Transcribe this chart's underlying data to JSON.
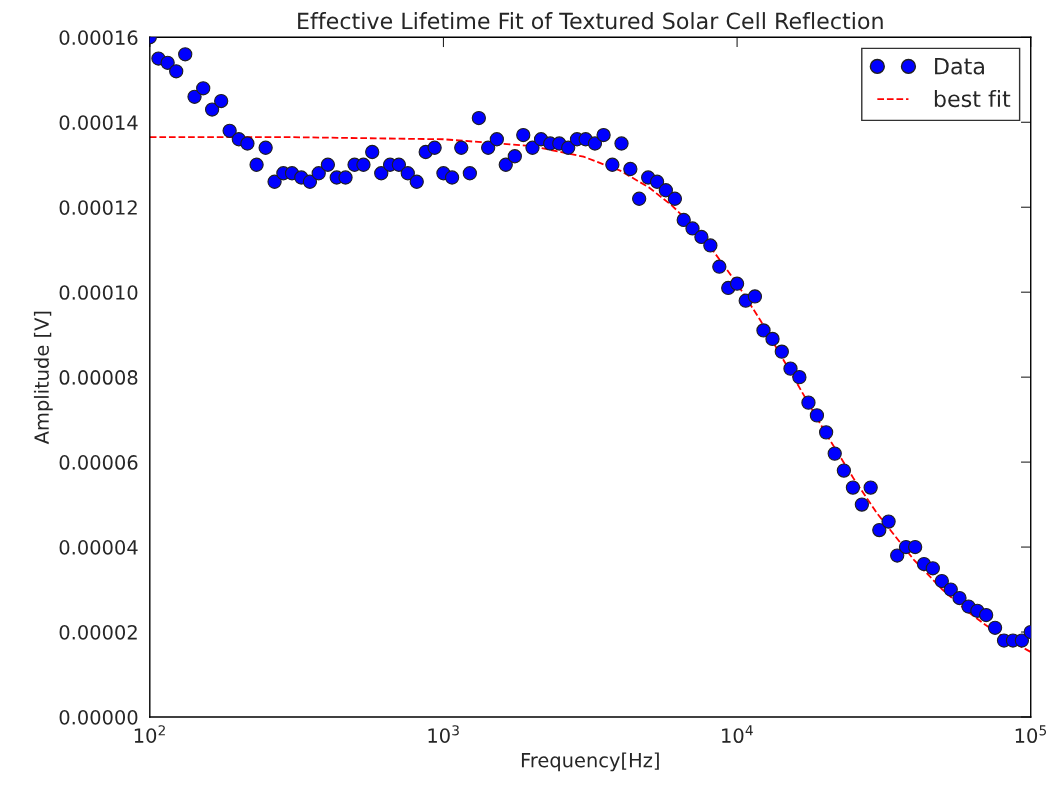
{
  "chart_data": {
    "type": "scatter",
    "title": "Effective Lifetime Fit of Textured Solar Cell Reflection",
    "xlabel": "Frequency[Hz]",
    "ylabel": "Amplitude [V]",
    "log": "x",
    "xlim": [
      100,
      100000
    ],
    "xticks": [
      {
        "value": 100,
        "label": "10$^{2}$"
      },
      {
        "value": 1000,
        "label": "10$^{3}$"
      },
      {
        "value": 10000,
        "label": "10$^{4}$"
      },
      {
        "value": 100000,
        "label": "10$^{5}$"
      }
    ],
    "ylim": [
      0,
      0.00016
    ],
    "yticks": [
      {
        "value": 0,
        "label": "0.00000"
      },
      {
        "value": 2e-05,
        "label": "0.00002"
      },
      {
        "value": 4e-05,
        "label": "0.00004"
      },
      {
        "value": 6e-05,
        "label": "0.00006"
      },
      {
        "value": 8e-05,
        "label": "0.00008"
      },
      {
        "value": 0.0001,
        "label": "0.00010"
      },
      {
        "value": 0.00012,
        "label": "0.00012"
      },
      {
        "value": 0.00014,
        "label": "0.00014"
      },
      {
        "value": 0.00016,
        "label": "0.00016"
      }
    ],
    "grid": false,
    "legend": "top right",
    "series": [
      {
        "name": "Data",
        "color": "#0000ff",
        "marker": "circle",
        "x": [
          100,
          107,
          115,
          123,
          132,
          142,
          152,
          163,
          175,
          187,
          201,
          215,
          231,
          248,
          266,
          285,
          305,
          328,
          351,
          376,
          404,
          433,
          464,
          498,
          534,
          572,
          614,
          658,
          705,
          756,
          811,
          870,
          933,
          1000,
          1070,
          1150,
          1230,
          1320,
          1420,
          1520,
          1630,
          1750,
          1870,
          2010,
          2150,
          2310,
          2480,
          2660,
          2850,
          3050,
          3280,
          3510,
          3760,
          4040,
          4330,
          4640,
          4980,
          5340,
          5720,
          6140,
          6580,
          7050,
          7560,
          8110,
          8700,
          9330,
          10000,
          10700,
          11500,
          12300,
          13200,
          14200,
          15200,
          16300,
          17500,
          18700,
          20100,
          21500,
          23100,
          24800,
          26600,
          28500,
          30500,
          32800,
          35100,
          37600,
          40400,
          43300,
          46400,
          49800,
          53400,
          57200,
          61400,
          65800,
          70500,
          75600,
          81100,
          87000,
          93300,
          100000
        ],
        "values": [
          0.00016,
          0.000155,
          0.000154,
          0.000152,
          0.000156,
          0.000146,
          0.000148,
          0.000143,
          0.000145,
          0.000138,
          0.000136,
          0.000135,
          0.00013,
          0.000134,
          0.000126,
          0.000128,
          0.000128,
          0.000127,
          0.000126,
          0.000128,
          0.00013,
          0.000127,
          0.000127,
          0.00013,
          0.00013,
          0.000133,
          0.000128,
          0.00013,
          0.00013,
          0.000128,
          0.000126,
          0.000133,
          0.000134,
          0.000128,
          0.000127,
          0.000134,
          0.000128,
          0.000141,
          0.000134,
          0.000136,
          0.00013,
          0.000132,
          0.000137,
          0.000134,
          0.000136,
          0.000135,
          0.000135,
          0.000134,
          0.000136,
          0.000136,
          0.000135,
          0.000137,
          0.00013,
          0.000135,
          0.000129,
          0.000122,
          0.000127,
          0.000126,
          0.000124,
          0.000122,
          0.000117,
          0.000115,
          0.000113,
          0.000111,
          0.000106,
          0.000101,
          0.000102,
          9.8e-05,
          9.9e-05,
          9.1e-05,
          8.9e-05,
          8.6e-05,
          8.2e-05,
          8e-05,
          7.4e-05,
          7.1e-05,
          6.7e-05,
          6.2e-05,
          5.8e-05,
          5.4e-05,
          5e-05,
          5.4e-05,
          4.4e-05,
          4.6e-05,
          3.8e-05,
          4e-05,
          4e-05,
          3.6e-05,
          3.5e-05,
          3.2e-05,
          3e-05,
          2.8e-05,
          2.6e-05,
          2.5e-05,
          2.4e-05,
          2.1e-05,
          1.8e-05,
          1.8e-05,
          1.8e-05,
          2e-05
        ]
      },
      {
        "name": "best fit",
        "type": "line",
        "color": "#ff0000",
        "line_style": "dashed",
        "marker": "none",
        "x": [
          100,
          300,
          1000,
          2000,
          3000,
          4000,
          5000,
          6000,
          7000,
          8000,
          10000,
          12000,
          15000,
          20000,
          25000,
          30000,
          40000,
          50000,
          60000,
          70000,
          80000,
          100000
        ],
        "values": [
          0.0001365,
          0.0001365,
          0.000136,
          0.0001344,
          0.0001319,
          0.0001286,
          0.0001247,
          0.0001204,
          0.0001159,
          0.0001112,
          0.000102,
          9.34e-05,
          8.19e-05,
          6.69e-05,
          5.6e-05,
          4.79e-05,
          3.7e-05,
          3e-05,
          2.52e-05,
          2.17e-05,
          1.9e-05,
          1.53e-05
        ]
      }
    ]
  }
}
